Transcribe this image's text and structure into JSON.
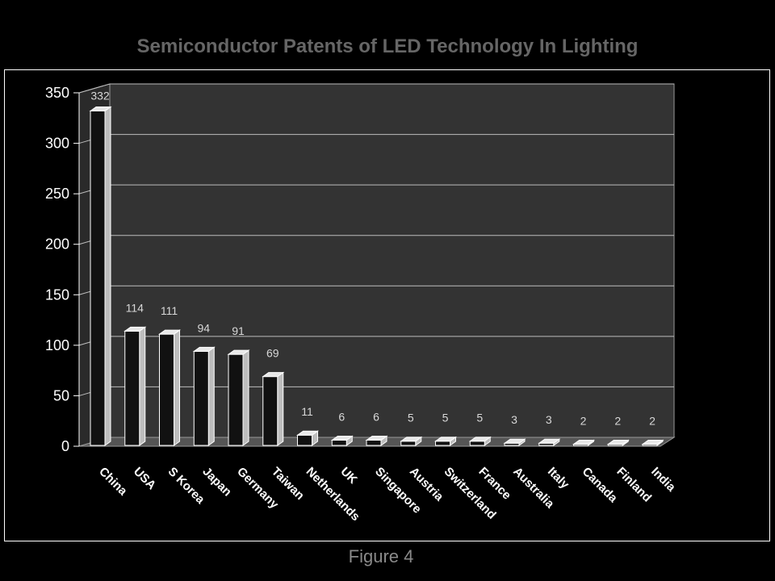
{
  "chart_data": {
    "type": "bar",
    "title": "Semiconductor Patents of LED Technology In Lighting",
    "caption": "Figure 4",
    "categories": [
      "China",
      "USA",
      "S Korea",
      "Japan",
      "Germany",
      "Taiwan",
      "Netherlands",
      "UK",
      "Singapore",
      "Austria",
      "Switzerland",
      "France",
      "Australia",
      "Italy",
      "Canada",
      "Finland",
      "India"
    ],
    "series": [
      {
        "values": [
          332,
          114,
          111,
          94,
          91,
          69,
          11,
          6,
          6,
          5,
          5,
          5,
          3,
          3,
          2,
          2,
          2
        ]
      }
    ],
    "data_labels": [
      "332",
      "114",
      "111",
      "94",
      "91",
      "69",
      "11",
      "6",
      "6",
      "5",
      "5",
      "5",
      "3",
      "3",
      "2",
      "2",
      "2"
    ],
    "y_ticks": [
      0,
      50,
      100,
      150,
      200,
      250,
      300,
      350
    ],
    "y_tick_labels": [
      "0",
      "50",
      "100",
      "150",
      "200",
      "250",
      "300",
      "350"
    ],
    "ylim": [
      0,
      350
    ],
    "grid": true,
    "legend": "none",
    "colors": {
      "background": "#000000",
      "plot_wall": "#333333",
      "floor": "#555555",
      "bar_front": "#111111",
      "bar_edge": "#ffffff",
      "grid": "#bdbdbd",
      "title": "#666666"
    }
  }
}
